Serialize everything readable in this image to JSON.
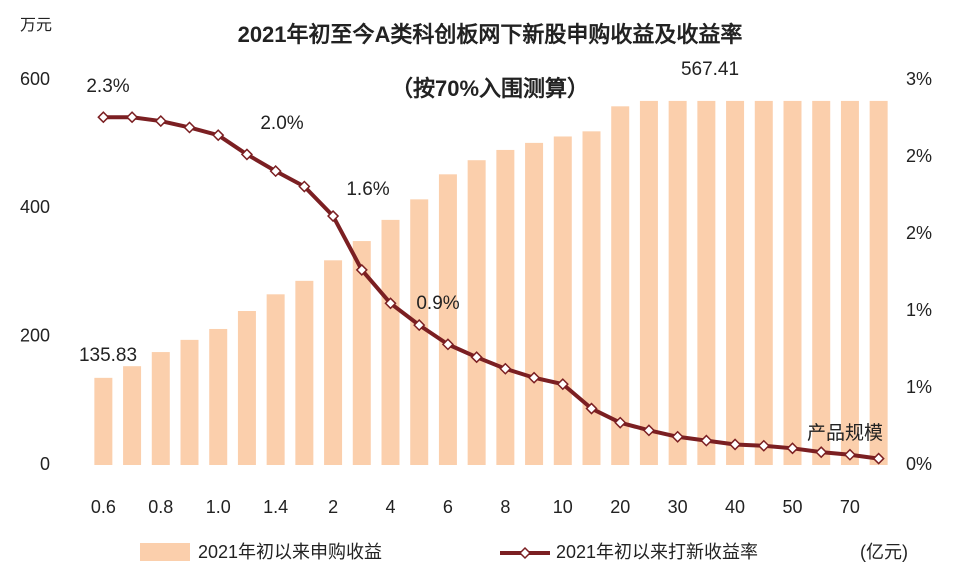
{
  "chart_data": {
    "type": "bar_line",
    "title": "2021年初至今A类科创板网下新股申购收益及收益率",
    "subtitle": "（按70%入围测算）",
    "y_unit": "万元",
    "x_unit": "(亿元)",
    "categories": [
      "0.6",
      null,
      "0.8",
      null,
      "1.0",
      null,
      "1.4",
      null,
      "2",
      null,
      "4",
      null,
      "6",
      null,
      "8",
      null,
      "10",
      null,
      "20",
      null,
      "30",
      null,
      "40",
      null,
      "50",
      null,
      "70",
      null
    ],
    "series": [
      {
        "name": "2021年初以来申购收益",
        "color": "#fbcfac",
        "values": [
          135.83,
          154,
          176,
          195,
          212,
          240,
          266,
          287,
          319,
          349,
          382,
          414,
          453,
          475,
          491,
          502,
          512,
          520,
          559,
          567.41,
          567.41,
          567.41,
          567.41,
          567.41,
          567.41,
          567.41,
          567.41,
          567.41
        ]
      },
      {
        "name": "2021年初以来打新收益率",
        "color": "#7b1f22",
        "axis": "y2",
        "values": [
          2.71,
          2.71,
          2.68,
          2.63,
          2.57,
          2.42,
          2.29,
          2.17,
          1.94,
          1.52,
          1.26,
          1.09,
          0.94,
          0.84,
          0.75,
          0.68,
          0.63,
          0.44,
          0.33,
          0.27,
          0.22,
          0.19,
          0.16,
          0.15,
          0.13,
          0.1,
          0.08,
          0.05
        ]
      }
    ],
    "annotations": [
      "2.3%",
      "2.0%",
      "1.6%",
      "0.9%",
      "产品规模"
    ],
    "ylim": [
      0,
      600
    ],
    "yticks": [
      0,
      200,
      400,
      600
    ],
    "y2lim": [
      0,
      3
    ],
    "y2ticks": [
      {
        "value": 0,
        "label": "0%"
      },
      {
        "value": 0.6,
        "label": "1%"
      },
      {
        "value": 1.2,
        "label": "1%"
      },
      {
        "value": 1.8,
        "label": "2%"
      },
      {
        "value": 2.4,
        "label": "2%"
      },
      {
        "value": 3.0,
        "label": "3%"
      }
    ]
  }
}
